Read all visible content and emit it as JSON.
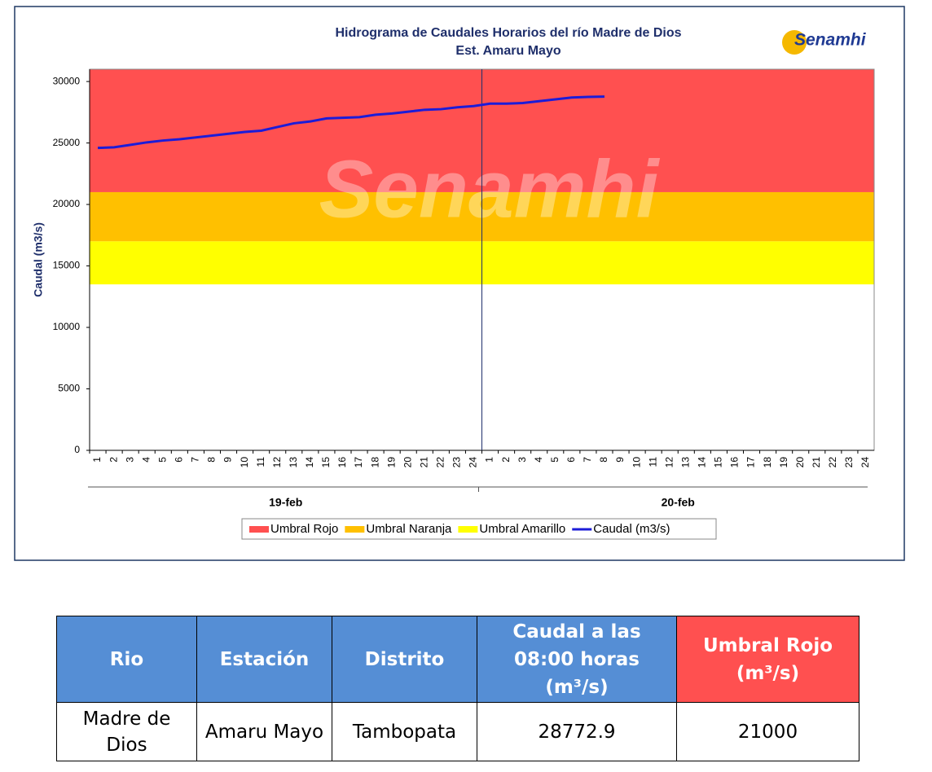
{
  "chart_data": {
    "type": "line",
    "title": "Hidrograma de Caudales Horarios del río Madre de Dios",
    "subtitle": "Est. Amaru Mayo",
    "logo": "Senamhi",
    "y_label": "Caudal  (m3/s)",
    "categories": [
      "1",
      "2",
      "3",
      "4",
      "5",
      "6",
      "7",
      "8",
      "9",
      "10",
      "11",
      "12",
      "13",
      "14",
      "15",
      "16",
      "17",
      "18",
      "19",
      "20",
      "21",
      "22",
      "23",
      "24",
      "1",
      "2",
      "3",
      "4",
      "5",
      "6",
      "7",
      "8",
      "9",
      "10",
      "11",
      "12",
      "13",
      "14",
      "15",
      "16",
      "17",
      "18",
      "19",
      "20",
      "21",
      "22",
      "23",
      "24"
    ],
    "groups": [
      {
        "label": "19-feb",
        "count": 24
      },
      {
        "label": "20-feb",
        "count": 24
      }
    ],
    "bands": [
      {
        "name": "Umbral Rojo",
        "color": "#ff5050",
        "from": 21000
      },
      {
        "name": "Umbral Naranja",
        "color": "#ffc000",
        "from": 17000
      },
      {
        "name": "Umbral Amarillo",
        "color": "#ffff00",
        "from": 13500
      }
    ],
    "series": [
      {
        "name": "Caudal (m3/s)",
        "color": "#1c1cd8",
        "values": [
          24600,
          24650,
          24850,
          25050,
          25200,
          25300,
          25450,
          25600,
          25750,
          25900,
          26000,
          26300,
          26600,
          26750,
          27000,
          27050,
          27100,
          27300,
          27400,
          27550,
          27700,
          27750,
          27900,
          28000,
          28200,
          28200,
          28250,
          28400,
          28550,
          28700,
          28750,
          28773,
          null,
          null,
          null,
          null,
          null,
          null,
          null,
          null,
          null,
          null,
          null,
          null,
          null,
          null,
          null,
          null
        ]
      }
    ],
    "ylim": [
      0,
      31000
    ],
    "yticks": [
      0,
      5000,
      10000,
      15000,
      20000,
      25000,
      30000
    ]
  },
  "table": {
    "header": [
      "Rio",
      "Estación",
      "Distrito",
      "Caudal a las 08:00 horas (m³/s)",
      "Umbral Rojo (m³/s)"
    ],
    "rows": [
      [
        "Madre de Dios",
        "Amaru Mayo",
        "Tambopata",
        28772.9,
        21000
      ]
    ]
  }
}
